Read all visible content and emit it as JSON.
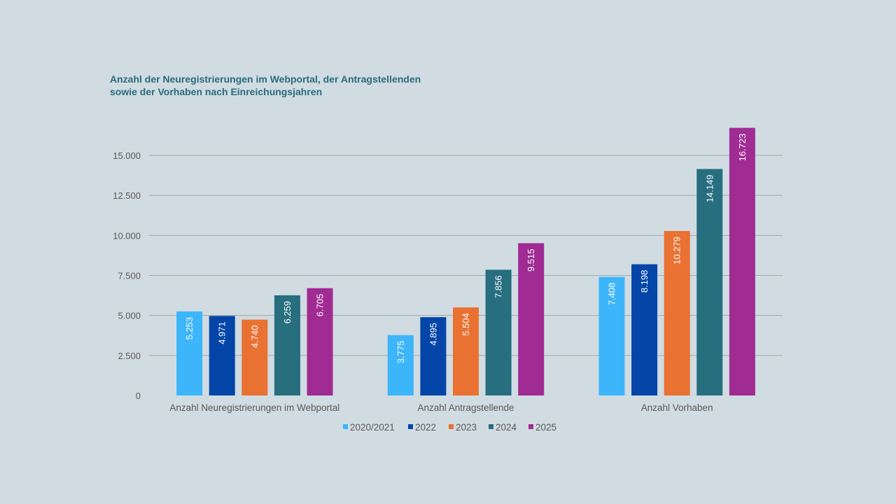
{
  "chart_data": {
    "type": "bar",
    "title_lines": [
      "Anzahl der Neuregistrierungen im Webportal, der Antragstellenden",
      "sowie der Vorhaben nach Einreichungsjahren"
    ],
    "categories": [
      "Anzahl Neuregistrierungen im Webportal",
      "Anzahl Antragstellende",
      "Anzahl Vorhaben"
    ],
    "series": [
      {
        "name": "2020/2021",
        "color": "#3db5fa",
        "values": [
          5253,
          3775,
          7408
        ],
        "labels": [
          "5.253",
          "3.775",
          "7.408"
        ]
      },
      {
        "name": "2022",
        "color": "#0346a8",
        "values": [
          4971,
          4895,
          8198
        ],
        "labels": [
          "4.971",
          "4.895",
          "8.198"
        ]
      },
      {
        "name": "2023",
        "color": "#e97132",
        "values": [
          4740,
          5504,
          10279
        ],
        "labels": [
          "4.740",
          "5.504",
          "10.279"
        ]
      },
      {
        "name": "2024",
        "color": "#276e7f",
        "values": [
          6259,
          7856,
          14149
        ],
        "labels": [
          "6.259",
          "7.856",
          "14.149"
        ]
      },
      {
        "name": "2025",
        "color": "#a02b93",
        "values": [
          6705,
          9515,
          16723
        ],
        "labels": [
          "6.705",
          "9.515",
          "16.723"
        ]
      }
    ],
    "yticks": [
      0,
      2500,
      5000,
      7500,
      10000,
      12500,
      15000
    ],
    "ytick_labels": [
      "0",
      "2.500",
      "5.000",
      "7.500",
      "10.000",
      "12.500",
      "15.000"
    ],
    "ylim": [
      0,
      15000
    ],
    "xlabel": "",
    "ylabel": "",
    "grid": true,
    "legend_position": "bottom",
    "data_labels": "inside-rotated"
  }
}
